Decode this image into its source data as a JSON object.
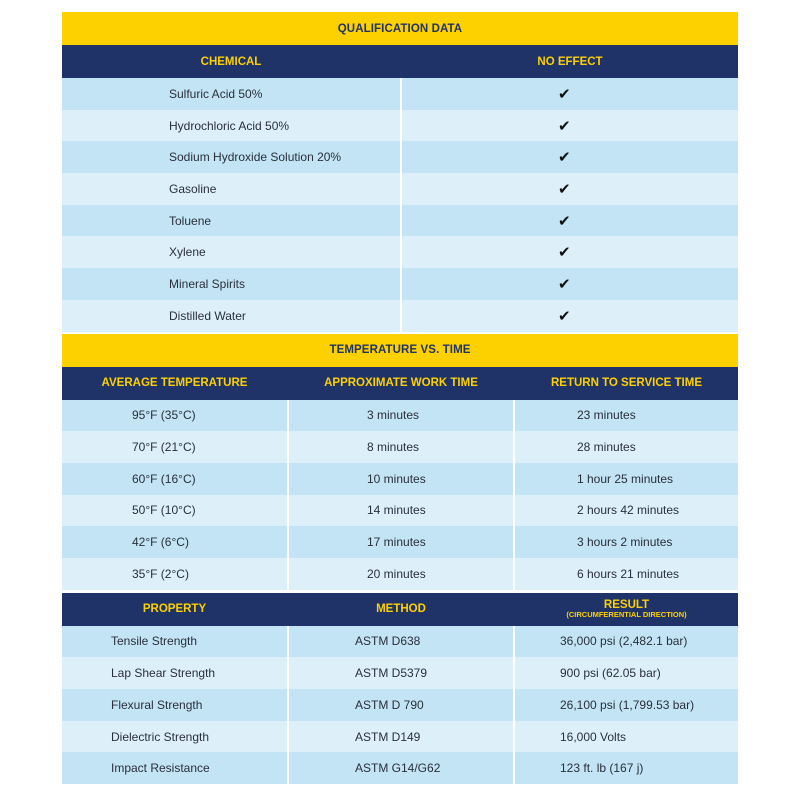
{
  "qualification": {
    "title": "QUALIFICATION DATA",
    "headers": [
      "CHEMICAL",
      "NO EFFECT"
    ],
    "check_icon": "checkmark",
    "rows": [
      {
        "chemical": "Sulfuric Acid 50%",
        "no_effect": true
      },
      {
        "chemical": "Hydrochloric Acid 50%",
        "no_effect": true
      },
      {
        "chemical": "Sodium Hydroxide Solution 20%",
        "no_effect": true
      },
      {
        "chemical": "Gasoline",
        "no_effect": true
      },
      {
        "chemical": "Toluene",
        "no_effect": true
      },
      {
        "chemical": "Xylene",
        "no_effect": true
      },
      {
        "chemical": "Mineral Spirits",
        "no_effect": true
      },
      {
        "chemical": "Distilled Water",
        "no_effect": true
      }
    ]
  },
  "temperature": {
    "title": "TEMPERATURE VS. TIME",
    "headers": [
      "AVERAGE TEMPERATURE",
      "APPROXIMATE WORK TIME",
      "RETURN TO SERVICE TIME"
    ],
    "rows": [
      [
        "95°F (35°C)",
        "3 minutes",
        "23 minutes"
      ],
      [
        "70°F (21°C)",
        "8 minutes",
        "28 minutes"
      ],
      [
        "60°F (16°C)",
        "10 minutes",
        "1 hour 25 minutes"
      ],
      [
        "50°F (10°C)",
        "14 minutes",
        "2 hours 42 minutes"
      ],
      [
        "42°F (6°C)",
        "17 minutes",
        "3 hours 2 minutes"
      ],
      [
        "35°F (2°C)",
        "20 minutes",
        "6 hours 21 minutes"
      ]
    ]
  },
  "properties": {
    "headers": [
      "PROPERTY",
      "METHOD",
      "RESULT"
    ],
    "result_subheader": "(CIRCUMFERENTIAL DIRECTION)",
    "rows": [
      [
        "Tensile Strength",
        "ASTM D638",
        "36,000 psi (2,482.1 bar)"
      ],
      [
        "Lap Shear Strength",
        "ASTM D5379",
        "900 psi (62.05 bar)"
      ],
      [
        "Flexural Strength",
        "ASTM D 790",
        "26,100 psi (1,799.53 bar)"
      ],
      [
        "Dielectric Strength",
        "ASTM D149",
        "16,000 Volts"
      ],
      [
        "Impact Resistance",
        "ASTM G14/G62",
        "123 ft. lb (167 j)"
      ]
    ]
  },
  "colors": {
    "yellow": "#fdd000",
    "navy": "#1f3368",
    "row_dark": "#c2e4f5",
    "row_light": "#ddf0fa"
  }
}
